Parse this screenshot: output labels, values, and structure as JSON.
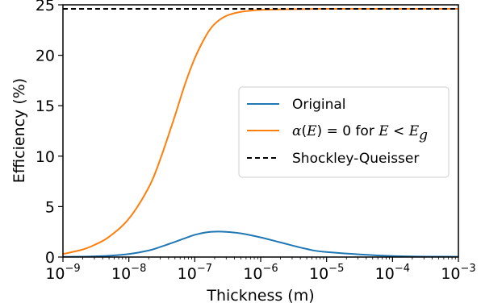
{
  "chart_data": {
    "type": "line",
    "xlabel": "Thickness (m)",
    "ylabel": "Efficiency (%)",
    "xscale": "log",
    "xlim": [
      1e-09,
      0.001
    ],
    "ylim": [
      0,
      25
    ],
    "grid": false,
    "legend_placement": "center-right",
    "x_ticks": [
      {
        "value": 1e-09,
        "base": "10",
        "exp": "−9"
      },
      {
        "value": 1e-08,
        "base": "10",
        "exp": "−8"
      },
      {
        "value": 1e-07,
        "base": "10",
        "exp": "−7"
      },
      {
        "value": 1e-06,
        "base": "10",
        "exp": "−6"
      },
      {
        "value": 1e-05,
        "base": "10",
        "exp": "−5"
      },
      {
        "value": 0.0001,
        "base": "10",
        "exp": "−4"
      },
      {
        "value": 0.001,
        "base": "10",
        "exp": "−3"
      }
    ],
    "y_ticks": [
      {
        "value": 0,
        "label": "0"
      },
      {
        "value": 5,
        "label": "5"
      },
      {
        "value": 10,
        "label": "10"
      },
      {
        "value": 15,
        "label": "15"
      },
      {
        "value": 20,
        "label": "20"
      },
      {
        "value": 25,
        "label": "25"
      }
    ],
    "x": [
      1e-09,
      2e-09,
      3e-09,
      5e-09,
      1e-08,
      2e-08,
      3e-08,
      5e-08,
      7e-08,
      1e-07,
      1.5e-07,
      2e-07,
      3e-07,
      5e-07,
      1e-06,
      2e-06,
      5e-06,
      1e-05,
      0.0001,
      0.001
    ],
    "series": [
      {
        "name": "Original",
        "color": "#1f77b4",
        "style": "solid",
        "values": [
          0.02,
          0.04,
          0.07,
          0.13,
          0.3,
          0.65,
          1.0,
          1.5,
          1.85,
          2.2,
          2.45,
          2.52,
          2.5,
          2.35,
          1.95,
          1.45,
          0.8,
          0.5,
          0.1,
          0.03
        ]
      },
      {
        "name": "α(E) = 0 for E < Eg",
        "legend_parts": {
          "alpha": "α",
          "E1": "E",
          "eq0": ") = 0 for ",
          "E2": "E",
          "lt": " < ",
          "E3": "E",
          "sub": "g"
        },
        "color": "#ff7f0e",
        "style": "solid",
        "values": [
          0.3,
          0.75,
          1.2,
          2.0,
          3.8,
          6.9,
          9.7,
          14.0,
          17.0,
          19.7,
          22.0,
          23.1,
          23.9,
          24.3,
          24.5,
          24.55,
          24.58,
          24.6,
          24.6,
          24.6
        ]
      },
      {
        "name": "Shockley-Queisser",
        "color": "#000000",
        "style": "dashed",
        "values": [
          24.6,
          24.6,
          24.6,
          24.6,
          24.6,
          24.6,
          24.6,
          24.6,
          24.6,
          24.6,
          24.6,
          24.6,
          24.6,
          24.6,
          24.6,
          24.6,
          24.6,
          24.6,
          24.6,
          24.6
        ]
      }
    ]
  }
}
